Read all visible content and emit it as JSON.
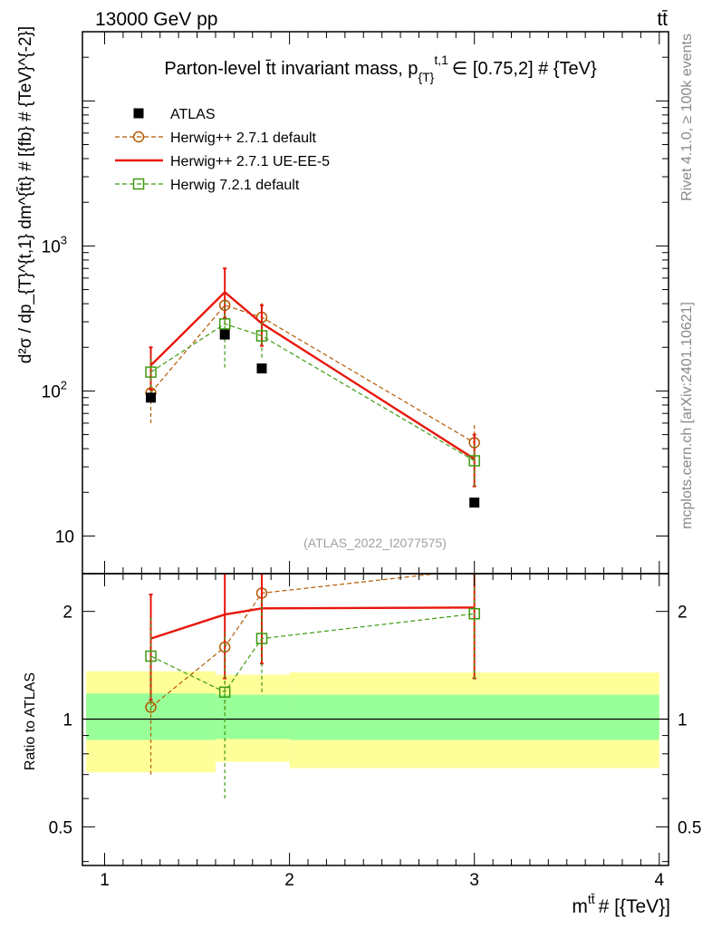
{
  "header": {
    "left": "13000 GeV pp",
    "right": "tt̄"
  },
  "side_text": {
    "rivet": "Rivet 4.1.0, ≥ 100k events",
    "source": "mcplots.cern.ch [arXiv:2401.10621]"
  },
  "chart_data": [
    {
      "type": "line",
      "title": "Parton-level t̄t invariant mass, p_{T}^{t,1} ∈ [0.75,2] # {TeV}",
      "title_parts": {
        "main": "Parton-level t̄t invariant mass, p",
        "sub": "{T}",
        "sup": "t,1",
        "rest": "∈ [0.75,2] # {TeV}"
      },
      "ylabel": "d²σ / dp_{T}^{t,1} dm^{t̄t} # [{fb} # {TeV}^{-2}]",
      "yscale": "log",
      "xlim": [
        0.88,
        4.05
      ],
      "ylim": [
        5.5,
        30000
      ],
      "y_ticks": [
        {
          "value": 10,
          "label": "10"
        },
        {
          "value": 100,
          "label": "10",
          "exp": "2"
        },
        {
          "value": 1000,
          "label": "10",
          "exp": "3"
        }
      ],
      "watermark": "(ATLAS_2022_I2077575)",
      "legend_position": "top-left",
      "legend": [
        {
          "label": "ATLAS",
          "color": "#000000",
          "marker": "square-filled"
        },
        {
          "label": "Herwig++ 2.7.1 default",
          "color": "#b35900",
          "marker": "circle-open",
          "dash": true
        },
        {
          "label": "Herwig++ 2.7.1 UE-EE-5",
          "color": "#e8160c",
          "marker": "none",
          "dash": false
        },
        {
          "label": "Herwig 7.2.1 default",
          "color": "#3d9a10",
          "marker": "square-open",
          "dash": true
        }
      ],
      "series": [
        {
          "name": "ATLAS",
          "color": "#000000",
          "x": [
            1.25,
            1.65,
            1.85,
            3.0
          ],
          "y": [
            90,
            245,
            143,
            17
          ]
        },
        {
          "name": "Herwig++ 2.7.1 default",
          "color": "#b35900",
          "x": [
            1.25,
            1.65,
            1.85,
            3.0
          ],
          "y": [
            97,
            390,
            322,
            44
          ],
          "yerr_lo": [
            60,
            260,
            255,
            30
          ],
          "yerr_hi": [
            145,
            560,
            420,
            59
          ]
        },
        {
          "name": "Herwig++ 2.7.1 UE-EE-5",
          "color": "#e8160c",
          "x": [
            1.25,
            1.65,
            1.85,
            3.0
          ],
          "y": [
            150,
            480,
            292,
            34
          ],
          "yerr_lo": [
            102,
            320,
            205,
            22
          ],
          "yerr_hi": [
            200,
            700,
            390,
            50
          ]
        },
        {
          "name": "Herwig 7.2.1 default",
          "color": "#3d9a10",
          "x": [
            1.25,
            1.65,
            1.85,
            3.0
          ],
          "y": [
            135,
            290,
            240,
            33
          ],
          "yerr_lo": [
            95,
            145,
            170,
            22
          ],
          "yerr_hi": [
            175,
            430,
            315,
            45
          ]
        }
      ]
    },
    {
      "type": "line",
      "title": "",
      "ylabel": "Ratio to ATLAS",
      "xlabel": "m^{t̄t} # [{TeV}]",
      "xlabel_parts": {
        "main": "m",
        "sup": "tt̄",
        "rest": "# [{TeV}]"
      },
      "yscale": "log",
      "xlim": [
        0.88,
        4.05
      ],
      "ylim": [
        0.39,
        2.55
      ],
      "x_ticks": [
        1,
        2,
        3,
        4
      ],
      "y_ticks": [
        0.5,
        1,
        2
      ],
      "bands": [
        {
          "x0": 0.9,
          "x1": 1.6,
          "inner": [
            0.875,
            1.18
          ],
          "outer": [
            0.71,
            1.36
          ]
        },
        {
          "x0": 1.6,
          "x1": 2.0,
          "inner": [
            0.88,
            1.17
          ],
          "outer": [
            0.76,
            1.33
          ]
        },
        {
          "x0": 2.0,
          "x1": 4.0,
          "inner": [
            0.875,
            1.17
          ],
          "outer": [
            0.73,
            1.35
          ]
        }
      ],
      "series": [
        {
          "name": "Herwig++ 2.7.1 default",
          "color": "#b35900",
          "x": [
            1.25,
            1.65,
            1.85,
            3.0
          ],
          "y": [
            1.08,
            1.59,
            2.25,
            2.62
          ],
          "yerr_lo": [
            0.7,
            1.06,
            2.1,
            2.5
          ],
          "yerr_hi": [
            1.7,
            2.3,
            2.4,
            2.8
          ]
        },
        {
          "name": "Herwig++ 2.7.1 UE-EE-5",
          "color": "#e8160c",
          "x": [
            1.25,
            1.65,
            1.85,
            3.0
          ],
          "y": [
            1.68,
            1.96,
            2.04,
            2.05
          ],
          "yerr_lo": [
            1.13,
            1.3,
            1.43,
            1.3
          ],
          "yerr_hi": [
            2.23,
            2.85,
            2.7,
            2.9
          ]
        },
        {
          "name": "Herwig 7.2.1 default",
          "color": "#3d9a10",
          "x": [
            1.25,
            1.65,
            1.85,
            3.0
          ],
          "y": [
            1.5,
            1.19,
            1.68,
            1.97
          ],
          "yerr_lo": [
            1.06,
            0.6,
            1.19,
            1.29
          ],
          "yerr_hi": [
            1.95,
            1.75,
            2.2,
            2.65
          ]
        }
      ]
    }
  ]
}
